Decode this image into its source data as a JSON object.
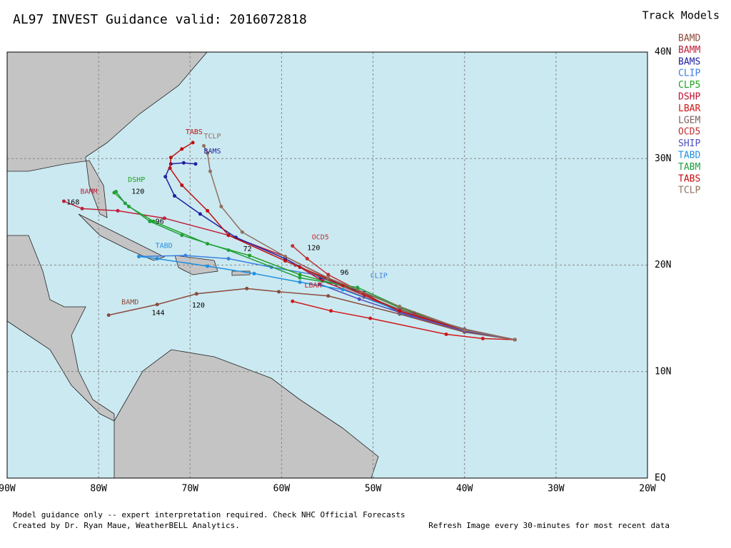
{
  "title": "AL97 INVEST Guidance valid: 2016072818",
  "legend_title": "Track Models",
  "map": {
    "xlim": [
      -90,
      -20
    ],
    "ylim": [
      0,
      40
    ],
    "xticks": [
      {
        "value": -90,
        "label": "90W"
      },
      {
        "value": -80,
        "label": "80W"
      },
      {
        "value": -70,
        "label": "70W"
      },
      {
        "value": -60,
        "label": "60W"
      },
      {
        "value": -50,
        "label": "50W"
      },
      {
        "value": -40,
        "label": "40W"
      },
      {
        "value": -30,
        "label": "30W"
      },
      {
        "value": -20,
        "label": "20W"
      }
    ],
    "yticks": [
      {
        "value": 40,
        "label": "40N"
      },
      {
        "value": 30,
        "label": "30N"
      },
      {
        "value": 20,
        "label": "20N"
      },
      {
        "value": 10,
        "label": "10N"
      },
      {
        "value": 0,
        "label": "EQ"
      }
    ],
    "tracks": [
      {
        "name": "BAMD",
        "color": "#8b4a3a",
        "lon": [
          -34.5,
          -40,
          -47.1,
          -54.9,
          -60.3,
          -63.8,
          -69.3,
          -73.6,
          -78.9
        ],
        "lat": [
          13,
          13.7,
          15.4,
          17.1,
          17.5,
          17.8,
          17.3,
          16.3,
          15.3
        ]
      },
      {
        "name": "BAMM",
        "color": "#c0203a",
        "lon": [
          -34.5,
          -40,
          -47.1,
          -54.1,
          -59.6,
          -65.8,
          -72.8,
          -77.9,
          -81.8,
          -83.8
        ],
        "lat": [
          13,
          13.9,
          16.1,
          18.4,
          20.8,
          22.8,
          24.4,
          25.1,
          25.3,
          26
        ]
      },
      {
        "name": "BAMS",
        "color": "#2020a0",
        "lon": [
          -34.5,
          -40,
          -45.5,
          -51,
          -55.7,
          -59.6,
          -65,
          -68.9,
          -71.7,
          -72.7,
          -72.1,
          -70.7,
          -69.4
        ],
        "lat": [
          13,
          13.9,
          15.5,
          17.4,
          18.8,
          20.6,
          22.6,
          24.8,
          26.5,
          28.3,
          29.5,
          29.6,
          29.5
        ]
      },
      {
        "name": "CLIP",
        "color": "#3a80e0",
        "lon": [
          -34.5,
          -40,
          -47.1,
          -51.7,
          -56.4,
          -61.1,
          -65.8,
          -70.5,
          -75.6
        ],
        "lat": [
          13,
          13.9,
          15.5,
          17.7,
          19.1,
          19.8,
          20.6,
          20.9,
          20.8
        ]
      },
      {
        "name": "CLP5",
        "color": "#20a020",
        "lon": [
          -34.5,
          -40,
          -47.1,
          -51.7,
          -58,
          -63.5,
          -68.1,
          -74,
          -76.7,
          -78.3
        ],
        "lat": [
          13,
          13.9,
          16,
          17.7,
          19.1,
          20.9,
          22,
          24.1,
          25.5,
          26.8
        ]
      },
      {
        "name": "DSHP",
        "color": "#c01030",
        "lon": [
          -34.5,
          -40,
          -45.5,
          -51,
          -55.5,
          -58
        ],
        "lat": [
          13,
          13.9,
          15.4,
          17,
          18.5,
          19.8
        ]
      },
      {
        "name": "LBAR",
        "color": "#d01818",
        "lon": [
          -34.5,
          -38,
          -42,
          -50.3,
          -54.6,
          -58.8
        ],
        "lat": [
          13,
          13.1,
          13.5,
          15,
          15.7,
          16.6
        ]
      },
      {
        "name": "LGEM",
        "color": "#806060",
        "lon": [
          -34.5,
          -40,
          -47,
          -54,
          -58.5
        ],
        "lat": [
          13,
          14,
          15.8,
          18.2,
          20
        ]
      },
      {
        "name": "OCD5",
        "color": "#c03030",
        "lon": [
          -34.5,
          -40,
          -47.1,
          -54.9,
          -57.2,
          -58.8
        ],
        "lat": [
          13,
          13.9,
          15.6,
          19.1,
          20.6,
          21.8
        ]
      },
      {
        "name": "SHIP",
        "color": "#5050c0",
        "lon": [
          -34.5,
          -40,
          -45.8,
          -51.5,
          -55.8
        ],
        "lat": [
          13,
          13.8,
          15.2,
          16.8,
          18.2
        ]
      },
      {
        "name": "TABD",
        "color": "#2090e0",
        "lon": [
          -34.5,
          -40,
          -47.1,
          -53.3,
          -58,
          -63,
          -68.1,
          -73.6,
          -75.6
        ],
        "lat": [
          13,
          13.9,
          15.7,
          17.7,
          18.4,
          19.2,
          19.9,
          20.6,
          20.8
        ]
      },
      {
        "name": "TABM",
        "color": "#20a040",
        "lon": [
          -34.5,
          -40,
          -47.1,
          -51.7,
          -58,
          -65.8,
          -70.9,
          -74.4,
          -77.1,
          -78.1
        ],
        "lat": [
          13,
          13.9,
          16.1,
          17.9,
          18.8,
          21.4,
          22.8,
          24.1,
          25.8,
          26.9
        ]
      },
      {
        "name": "TABS",
        "color": "#c01010",
        "lon": [
          -34.5,
          -40,
          -47.1,
          -53.3,
          -59.6,
          -65.8,
          -68.1,
          -70.9,
          -72.2,
          -72.1,
          -70.9,
          -69.7
        ],
        "lat": [
          13,
          13.9,
          15.7,
          18.1,
          20.4,
          22.8,
          25.1,
          27.5,
          29.1,
          30.1,
          30.9,
          31.5
        ]
      },
      {
        "name": "TCLP",
        "color": "#907060",
        "lon": [
          -34.5,
          -40,
          -47.1,
          -54.9,
          -59.6,
          -64.3,
          -66.6,
          -67.8,
          -68.1,
          -68.5
        ],
        "lat": [
          13,
          13.9,
          16.1,
          18.8,
          20.8,
          23.1,
          25.5,
          28.8,
          30.5,
          31.2
        ]
      }
    ],
    "annotations": [
      {
        "text": "TABS",
        "lon": -70.5,
        "lat": 32.5,
        "color": "#c01010"
      },
      {
        "text": "TCLP",
        "lon": -68.5,
        "lat": 32.1,
        "color": "#907060"
      },
      {
        "text": "BAMS",
        "lon": -68.5,
        "lat": 30.7,
        "color": "#2020a0"
      },
      {
        "text": "DSHP",
        "lon": -76.8,
        "lat": 28,
        "color": "#20a020"
      },
      {
        "text": "BAMM",
        "lon": -82,
        "lat": 26.9,
        "color": "#c0203a"
      },
      {
        "text": "TABD",
        "lon": -73.8,
        "lat": 21.8,
        "color": "#2090e0"
      },
      {
        "text": "BAMD",
        "lon": -77.5,
        "lat": 16.5,
        "color": "#8b4a3a"
      },
      {
        "text": "OCD5",
        "lon": -56.7,
        "lat": 22.6,
        "color": "#c03030"
      },
      {
        "text": "CLIP",
        "lon": -50.3,
        "lat": 19,
        "color": "#3a80e0"
      },
      {
        "text": "LBAR",
        "lon": -57.5,
        "lat": 18.1,
        "color": "#d01818"
      },
      {
        "text": "120",
        "lon": -76.4,
        "lat": 26.9,
        "color": "#000000"
      },
      {
        "text": "96",
        "lon": -73.8,
        "lat": 24.1,
        "color": "#000000"
      },
      {
        "text": "72",
        "lon": -64.2,
        "lat": 21.5,
        "color": "#000000"
      },
      {
        "text": "168",
        "lon": -83.5,
        "lat": 25.9,
        "color": "#000000"
      },
      {
        "text": "120",
        "lon": -57.2,
        "lat": 21.6,
        "color": "#000000"
      },
      {
        "text": "96",
        "lon": -53.6,
        "lat": 19.3,
        "color": "#000000"
      },
      {
        "text": "144",
        "lon": -74.2,
        "lat": 15.5,
        "color": "#000000"
      },
      {
        "text": "120",
        "lon": -69.8,
        "lat": 16.2,
        "color": "#000000"
      }
    ]
  },
  "footer": [
    "Model guidance only -- expert interpretation required.  Check NHC Official Forecasts",
    "Created by Dr. Ryan Maue, WeatherBELL Analytics.",
    "Refresh Image every 30-minutes for most recent data"
  ]
}
